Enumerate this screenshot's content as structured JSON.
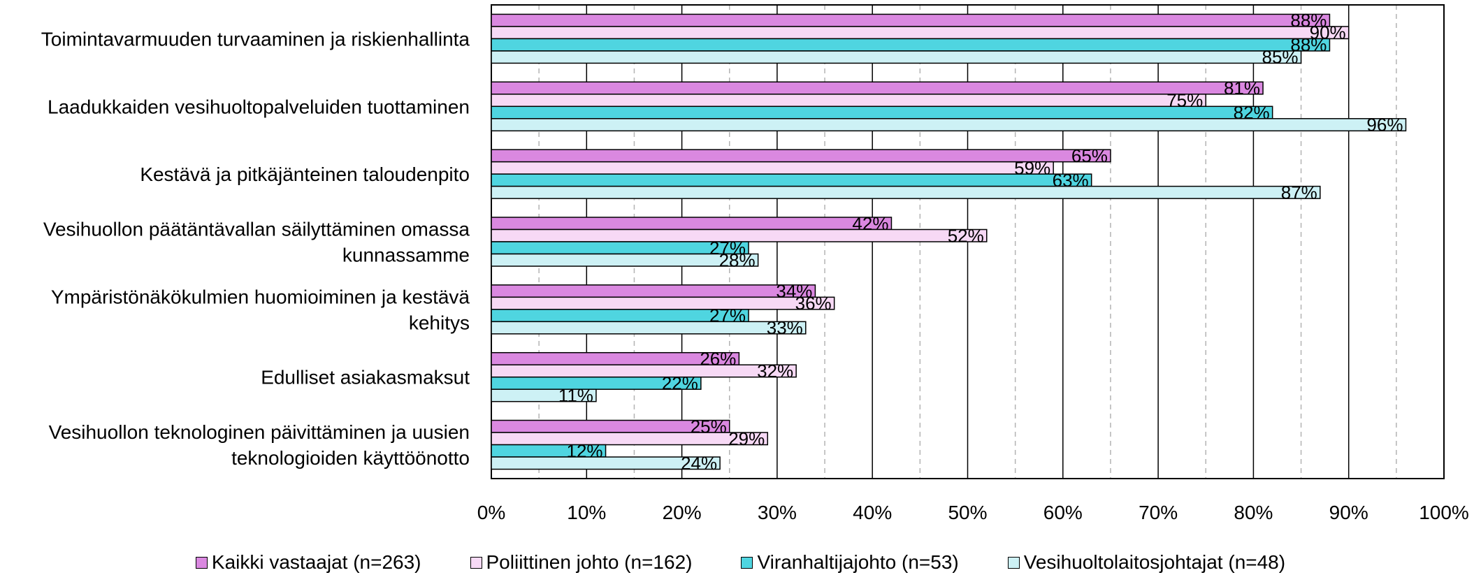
{
  "chart_data": {
    "type": "bar",
    "orientation": "horizontal",
    "categories": [
      [
        "Toimintavarmuuden turvaaminen ja riskienhallinta"
      ],
      [
        "Laadukkaiden vesihuoltopalveluiden tuottaminen"
      ],
      [
        "Kestävä ja pitkäjänteinen taloudenpito"
      ],
      [
        "Vesihuollon päätäntävallan säilyttäminen omassa",
        "kunnassamme"
      ],
      [
        "Ympäristönäkökulmien huomioiminen ja kestävä",
        "kehitys"
      ],
      [
        "Edulliset asiakasmaksut"
      ],
      [
        "Vesihuollon teknologinen päivittäminen ja uusien",
        "teknologioiden käyttöönotto"
      ]
    ],
    "series": [
      {
        "name": "Kaikki vastaajat (n=263)",
        "color": "#da88e0",
        "values": [
          88,
          81,
          65,
          42,
          34,
          26,
          25
        ],
        "labels": [
          "88%",
          "81%",
          "65%",
          "42%",
          "34%",
          "26%",
          "25%"
        ]
      },
      {
        "name": "Poliittinen johto (n=162)",
        "color": "#f7d9f5",
        "values": [
          90,
          75,
          59,
          52,
          36,
          32,
          29
        ],
        "labels": [
          "90%",
          "75%",
          "59%",
          "52%",
          "36%",
          "32%",
          "29%"
        ]
      },
      {
        "name": "Viranhaltijajohto (n=53)",
        "color": "#4fd5e0",
        "values": [
          88,
          82,
          63,
          27,
          27,
          22,
          12
        ],
        "labels": [
          "88%",
          "82%",
          "63%",
          "27%",
          "27%",
          "22%",
          "12%"
        ]
      },
      {
        "name": "Vesihuoltolaitosjohtajat (n=48)",
        "color": "#cdf1f5",
        "values": [
          85,
          96,
          87,
          28,
          33,
          11,
          24
        ],
        "labels": [
          "85%",
          "96%",
          "87%",
          "28%",
          "33%",
          "11%",
          "24%"
        ]
      }
    ],
    "xlim": [
      0,
      100
    ],
    "x_ticks": [
      "0%",
      "10%",
      "20%",
      "30%",
      "40%",
      "50%",
      "60%",
      "70%",
      "80%",
      "90%",
      "100%"
    ],
    "grid": "vertical major solid, minor dashed",
    "legend_position": "bottom"
  }
}
